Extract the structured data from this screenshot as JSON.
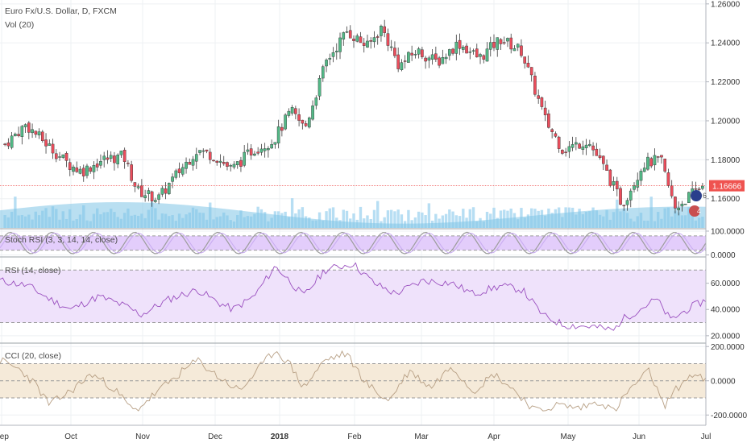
{
  "chart_data": [
    {
      "type": "candlestick",
      "title": "Euro Fx/U.S. Dollar, D, FXCM",
      "ylim": [
        1.145,
        1.262
      ],
      "yticks": [
        1.16,
        1.18,
        1.2,
        1.22,
        1.24,
        1.26
      ],
      "ytick_labels": [
        "1.16000",
        "1.18000",
        "1.20000",
        "1.22000",
        "1.24000",
        "1.26000"
      ],
      "last_price": 1.16666,
      "last_price_label": "1.16666",
      "x_months": [
        "Sep",
        "Oct",
        "Nov",
        "Dec",
        "2018",
        "Feb",
        "Mar",
        "Apr",
        "May",
        "Jun",
        "Jul"
      ],
      "close_anchors": [
        [
          0,
          1.188
        ],
        [
          0.03,
          1.198
        ],
        [
          0.06,
          1.188
        ],
        [
          0.09,
          1.178
        ],
        [
          0.11,
          1.174
        ],
        [
          0.14,
          1.18
        ],
        [
          0.17,
          1.182
        ],
        [
          0.19,
          1.164
        ],
        [
          0.22,
          1.16
        ],
        [
          0.245,
          1.172
        ],
        [
          0.275,
          1.185
        ],
        [
          0.3,
          1.182
        ],
        [
          0.325,
          1.175
        ],
        [
          0.355,
          1.185
        ],
        [
          0.385,
          1.19
        ],
        [
          0.41,
          1.205
        ],
        [
          0.43,
          1.196
        ],
        [
          0.46,
          1.23
        ],
        [
          0.49,
          1.246
        ],
        [
          0.52,
          1.238
        ],
        [
          0.54,
          1.248
        ],
        [
          0.565,
          1.228
        ],
        [
          0.59,
          1.236
        ],
        [
          0.62,
          1.23
        ],
        [
          0.65,
          1.24
        ],
        [
          0.68,
          1.232
        ],
        [
          0.71,
          1.242
        ],
        [
          0.74,
          1.236
        ],
        [
          0.775,
          1.2
        ],
        [
          0.8,
          1.185
        ],
        [
          0.835,
          1.19
        ],
        [
          0.86,
          1.175
        ],
        [
          0.885,
          1.157
        ],
        [
          0.915,
          1.178
        ],
        [
          0.94,
          1.18
        ],
        [
          0.96,
          1.155
        ],
        [
          1.0,
          1.167
        ]
      ],
      "candle_count": 205,
      "series": [
        {
          "name": "Vol (20)"
        }
      ]
    },
    {
      "type": "line",
      "title": "Stoch RSI (3, 3, 14, 14, close)",
      "ylim": [
        -5,
        110
      ],
      "yticks": [
        0,
        100
      ],
      "ytick_labels": [
        "0.0000",
        "100.0000"
      ],
      "bands": [
        20,
        80
      ]
    },
    {
      "type": "line",
      "title": "RSI (14, close)",
      "ylim": [
        15,
        80
      ],
      "yticks": [
        20,
        40,
        60
      ],
      "ytick_labels": [
        "20.0000",
        "40.0000",
        "60.0000"
      ],
      "bands": [
        30,
        70
      ],
      "anchors": [
        [
          0,
          62
        ],
        [
          0.04,
          58
        ],
        [
          0.07,
          48
        ],
        [
          0.1,
          40
        ],
        [
          0.14,
          50
        ],
        [
          0.18,
          42
        ],
        [
          0.2,
          36
        ],
        [
          0.24,
          48
        ],
        [
          0.28,
          55
        ],
        [
          0.31,
          45
        ],
        [
          0.33,
          40
        ],
        [
          0.36,
          50
        ],
        [
          0.39,
          73
        ],
        [
          0.41,
          62
        ],
        [
          0.43,
          50
        ],
        [
          0.46,
          70
        ],
        [
          0.5,
          75
        ],
        [
          0.53,
          60
        ],
        [
          0.56,
          52
        ],
        [
          0.6,
          62
        ],
        [
          0.64,
          60
        ],
        [
          0.67,
          52
        ],
        [
          0.71,
          58
        ],
        [
          0.74,
          55
        ],
        [
          0.77,
          35
        ],
        [
          0.8,
          28
        ],
        [
          0.84,
          27
        ],
        [
          0.87,
          24
        ],
        [
          0.88,
          32
        ],
        [
          0.9,
          38
        ],
        [
          0.93,
          48
        ],
        [
          0.95,
          32
        ],
        [
          0.98,
          42
        ],
        [
          1.0,
          47
        ]
      ]
    },
    {
      "type": "line",
      "title": "CCI (20, close)",
      "ylim": [
        -260,
        220
      ],
      "yticks": [
        -200,
        0,
        200
      ],
      "ytick_labels": [
        "-200.0000",
        "0.0000",
        "200.0000"
      ],
      "bands": [
        -100,
        100
      ],
      "anchors": [
        [
          0,
          120
        ],
        [
          0.03,
          60
        ],
        [
          0.05,
          -20
        ],
        [
          0.07,
          -140
        ],
        [
          0.1,
          -60
        ],
        [
          0.13,
          40
        ],
        [
          0.16,
          -40
        ],
        [
          0.19,
          -180
        ],
        [
          0.23,
          -40
        ],
        [
          0.26,
          60
        ],
        [
          0.28,
          120
        ],
        [
          0.31,
          20
        ],
        [
          0.34,
          -60
        ],
        [
          0.36,
          40
        ],
        [
          0.39,
          180
        ],
        [
          0.41,
          100
        ],
        [
          0.43,
          -40
        ],
        [
          0.46,
          120
        ],
        [
          0.49,
          160
        ],
        [
          0.52,
          -20
        ],
        [
          0.55,
          -120
        ],
        [
          0.58,
          60
        ],
        [
          0.61,
          -40
        ],
        [
          0.64,
          90
        ],
        [
          0.67,
          -60
        ],
        [
          0.7,
          40
        ],
        [
          0.73,
          -60
        ],
        [
          0.76,
          -180
        ],
        [
          0.79,
          -140
        ],
        [
          0.82,
          -160
        ],
        [
          0.85,
          -120
        ],
        [
          0.87,
          -180
        ],
        [
          0.89,
          -60
        ],
        [
          0.92,
          60
        ],
        [
          0.94,
          -150
        ],
        [
          0.96,
          -40
        ],
        [
          0.98,
          40
        ],
        [
          1.0,
          0
        ]
      ]
    }
  ],
  "header": {
    "symbol_label": "Euro Fx/U.S. Dollar, D, FXCM",
    "vol_label": "Vol (20)",
    "stoch_label": "Stoch RSI (3, 3, 14, 14, close)",
    "rsi_label": "RSI (14, close)",
    "cci_label": "CCI (20, close)"
  },
  "badges": {
    "events": "6",
    "earnings": "4"
  },
  "colors": {
    "up": "#53b987",
    "down": "#eb4d5c",
    "volume": "#a5d6f0",
    "volume_ma": "#7fc4e6",
    "stoch_band": "#e3cdfb",
    "stoch_k": "#9c9c9c",
    "stoch_d": "#c7aaf0",
    "rsi_band": "#efe2fb",
    "rsi_line": "#9a4fbf",
    "cci_band": "#f5ead9",
    "cci_line": "#b79f84",
    "price_line": "#ef5350"
  }
}
